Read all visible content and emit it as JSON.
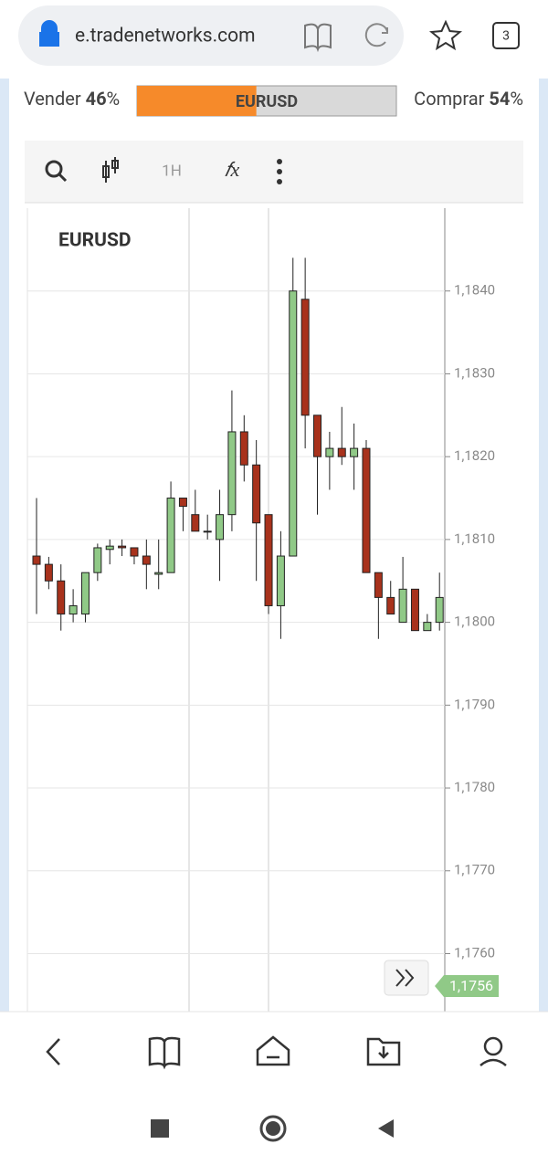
{
  "browser": {
    "url": "e.tradenetworks.com",
    "tabs": "3"
  },
  "sentiment": {
    "sell_label": "Vender",
    "sell": 46,
    "buy_label": "Comprar",
    "buy": 54,
    "unit": "%",
    "symbol": "EURUSD"
  },
  "toolbar": {
    "interval": "1H"
  },
  "chart_data": {
    "type": "candlestick",
    "title": "EURUSD",
    "categories": [
      null,
      null,
      null,
      null,
      null,
      null,
      null,
      null,
      null,
      null,
      null,
      null,
      null,
      null,
      null,
      null,
      null,
      null,
      null,
      null,
      null,
      null,
      null,
      null,
      null,
      null,
      null,
      null,
      null,
      null,
      null,
      null,
      null,
      null
    ],
    "open": [
      1.1808,
      1.1807,
      1.1805,
      1.1801,
      1.1801,
      1.1806,
      1.18088,
      1.18092,
      1.1809,
      1.1808,
      1.18058,
      1.1806,
      1.1815,
      1.1813,
      1.1811,
      1.181,
      1.1813,
      1.1823,
      1.1819,
      1.1813,
      1.1802,
      1.1808,
      1.1839,
      1.1825,
      1.182,
      1.1821,
      1.182,
      1.1821,
      1.1806,
      1.1803,
      1.18,
      1.1804,
      1.1799,
      1.18
    ],
    "high": [
      1.1815,
      1.18079,
      1.1807,
      1.1804,
      1.1806,
      1.18095,
      1.181,
      1.181,
      1.1809,
      1.181,
      1.181,
      1.1817,
      1.1815,
      1.1816,
      1.1813,
      1.1816,
      1.1828,
      1.1825,
      1.1822,
      1.1813,
      1.1811,
      1.1844,
      1.1844,
      1.1825,
      1.1823,
      1.1826,
      1.1824,
      1.1822,
      1.1806,
      1.1805,
      1.18079,
      1.1804,
      1.1801,
      1.1806
    ],
    "low": [
      1.1801,
      1.1804,
      1.1799,
      1.18,
      1.18,
      1.1805,
      1.1807,
      1.1808,
      1.1807,
      1.1804,
      1.1804,
      1.1806,
      1.1811,
      1.1811,
      1.181,
      1.1805,
      1.1811,
      1.1817,
      1.1805,
      1.1801,
      1.1798,
      1.1808,
      1.1821,
      1.1813,
      1.1816,
      1.1819,
      1.1816,
      1.1806,
      1.1798,
      1.1801,
      1.18,
      1.1799,
      1.1799,
      1.1799
    ],
    "close": [
      1.1807,
      1.1805,
      1.1801,
      1.1802,
      1.1806,
      1.1809,
      1.18092,
      1.1809,
      1.1808,
      1.1807,
      1.1806,
      1.1815,
      1.1814,
      1.1811,
      1.1811,
      1.1813,
      1.1823,
      1.1819,
      1.1812,
      1.1802,
      1.1808,
      1.184,
      1.1825,
      1.182,
      1.1821,
      1.182,
      1.1821,
      1.1806,
      1.1803,
      1.1801,
      1.1804,
      1.1799,
      1.18,
      1.1803
    ],
    "up_color": "#90c987",
    "down_color": "#a8321c",
    "ylim": [
      1.1753,
      1.185
    ],
    "yticks": [
      {
        "value": 1.176,
        "label": "1,1760"
      },
      {
        "value": 1.177,
        "label": "1,1770"
      },
      {
        "value": 1.178,
        "label": "1,1780"
      },
      {
        "value": 1.179,
        "label": "1,1790"
      },
      {
        "value": 1.18,
        "label": "1,1800"
      },
      {
        "value": 1.181,
        "label": "1,1810"
      },
      {
        "value": 1.182,
        "label": "1,1820"
      },
      {
        "value": 1.183,
        "label": "1,1830"
      },
      {
        "value": 1.184,
        "label": "1,1840"
      }
    ],
    "grid": true,
    "price_label": "1,1756"
  }
}
